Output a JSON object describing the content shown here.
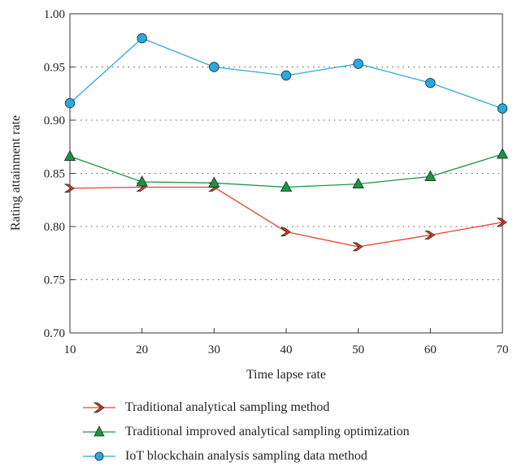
{
  "chart_data": {
    "type": "line",
    "xlabel": "Time lapse rate",
    "ylabel": "Rating attainment rate",
    "x": [
      10,
      20,
      30,
      40,
      50,
      60,
      70
    ],
    "xlim": [
      10,
      70
    ],
    "ylim": [
      0.7,
      1.0
    ],
    "x_ticks": [
      "10",
      "20",
      "30",
      "40",
      "50",
      "60",
      "70"
    ],
    "y_ticks": [
      "0.70",
      "0.75",
      "0.80",
      "0.85",
      "0.90",
      "0.95",
      "1.00"
    ],
    "grid": "horizontal dotted",
    "legend_position": "bottom",
    "series": [
      {
        "name": "Traditional analytical sampling method",
        "color": "#e8402a",
        "marker": "chevron",
        "values": [
          0.836,
          0.837,
          0.837,
          0.795,
          0.781,
          0.792,
          0.804
        ]
      },
      {
        "name": "Traditional improved analytical sampling optimization",
        "color": "#1a9641",
        "marker": "triangle",
        "values": [
          0.866,
          0.842,
          0.841,
          0.837,
          0.84,
          0.847,
          0.868
        ]
      },
      {
        "name": "IoT blockchain analysis sampling data method",
        "color": "#29a9e0",
        "marker": "circle",
        "values": [
          0.916,
          0.977,
          0.95,
          0.942,
          0.953,
          0.935,
          0.911
        ]
      }
    ]
  }
}
